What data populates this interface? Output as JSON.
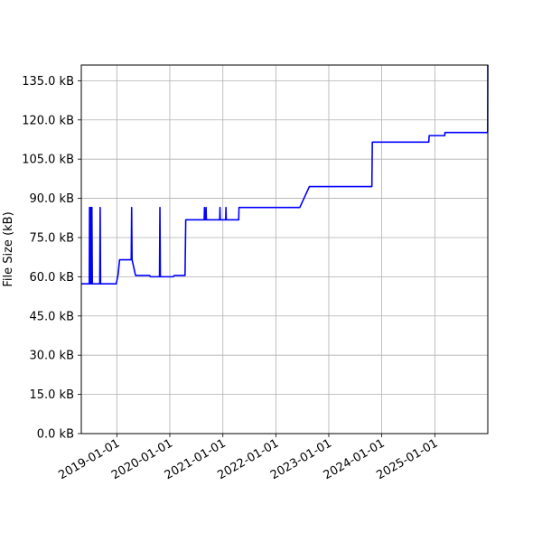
{
  "chart_data": {
    "type": "line",
    "title": "",
    "xlabel": "",
    "ylabel": "File Size (kB)",
    "grid": true,
    "legend": "none",
    "x_type": "date",
    "xlim": [
      "2018-05-01",
      "2026-01-01"
    ],
    "ylim": [
      0,
      141
    ],
    "y_ticks": [
      0,
      15,
      30,
      45,
      60,
      75,
      90,
      105,
      120,
      135
    ],
    "y_tick_labels": [
      "0.0 kB",
      "15.0 kB",
      "30.0 kB",
      "45.0 kB",
      "60.0 kB",
      "75.0 kB",
      "90.0 kB",
      "105.0 kB",
      "120.0 kB",
      "135.0 kB"
    ],
    "x_ticks": [
      "2019-01-01",
      "2020-01-01",
      "2021-01-01",
      "2022-01-01",
      "2023-01-01",
      "2024-01-01",
      "2025-01-01"
    ],
    "x_tick_labels": [
      "2019-01-01",
      "2020-01-01",
      "2021-01-01",
      "2022-01-01",
      "2023-01-01",
      "2024-01-01",
      "2025-01-01"
    ],
    "series": [
      {
        "color": "#0000ff",
        "points": [
          [
            "2018-05-01",
            57.3
          ],
          [
            "2018-06-25",
            57.3
          ],
          [
            "2018-06-27",
            86.5
          ],
          [
            "2018-06-30",
            57.3
          ],
          [
            "2018-07-02",
            86.5
          ],
          [
            "2018-07-05",
            57.3
          ],
          [
            "2018-07-07",
            86.5
          ],
          [
            "2018-07-10",
            57.3
          ],
          [
            "2018-07-13",
            86.5
          ],
          [
            "2018-07-16",
            57.3
          ],
          [
            "2018-09-05",
            57.3
          ],
          [
            "2018-09-08",
            86.5
          ],
          [
            "2018-09-11",
            57.3
          ],
          [
            "2018-12-28",
            57.3
          ],
          [
            "2019-01-10",
            61.0
          ],
          [
            "2019-01-20",
            66.5
          ],
          [
            "2019-04-10",
            66.5
          ],
          [
            "2019-04-13",
            86.5
          ],
          [
            "2019-04-16",
            66.5
          ],
          [
            "2019-05-10",
            60.5
          ],
          [
            "2019-08-15",
            60.5
          ],
          [
            "2019-08-20",
            60.0
          ],
          [
            "2019-10-22",
            60.0
          ],
          [
            "2019-10-25",
            86.5
          ],
          [
            "2019-10-28",
            60.0
          ],
          [
            "2020-01-25",
            60.0
          ],
          [
            "2020-02-01",
            60.5
          ],
          [
            "2020-04-15",
            60.5
          ],
          [
            "2020-04-20",
            81.8
          ],
          [
            "2020-08-25",
            81.8
          ],
          [
            "2020-08-27",
            86.5
          ],
          [
            "2020-08-29",
            81.8
          ],
          [
            "2020-09-05",
            81.8
          ],
          [
            "2020-09-07",
            86.5
          ],
          [
            "2020-09-09",
            81.8
          ],
          [
            "2020-12-10",
            81.8
          ],
          [
            "2020-12-12",
            86.5
          ],
          [
            "2020-12-14",
            81.8
          ],
          [
            "2021-01-20",
            81.8
          ],
          [
            "2021-01-22",
            86.5
          ],
          [
            "2021-01-24",
            81.8
          ],
          [
            "2021-04-20",
            81.8
          ],
          [
            "2021-04-22",
            86.5
          ],
          [
            "2022-06-15",
            86.5
          ],
          [
            "2022-08-20",
            94.5
          ],
          [
            "2023-10-25",
            94.5
          ],
          [
            "2023-10-28",
            111.5
          ],
          [
            "2024-11-20",
            111.5
          ],
          [
            "2024-11-23",
            114.0
          ],
          [
            "2025-03-10",
            114.0
          ],
          [
            "2025-03-12",
            115.2
          ],
          [
            "2025-12-31",
            115.2
          ],
          [
            "2026-01-01",
            141.0
          ]
        ]
      }
    ]
  }
}
